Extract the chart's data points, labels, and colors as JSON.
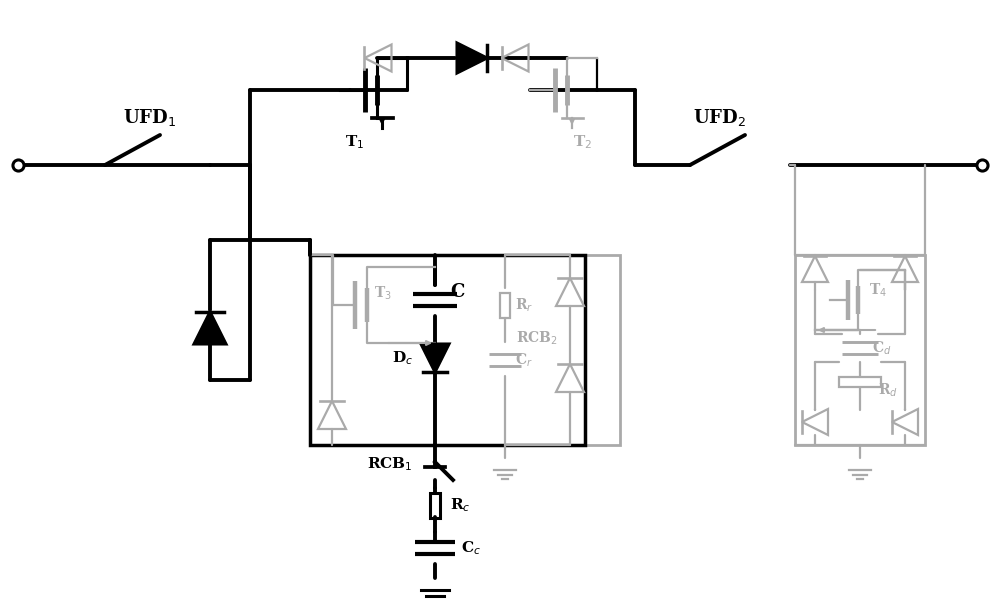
{
  "bg": "#ffffff",
  "black": "#000000",
  "gray": "#aaaaaa",
  "figsize": [
    10,
    6
  ],
  "dpi": 100,
  "xlim": [
    0,
    10
  ],
  "ylim": [
    0,
    6
  ],
  "labels": {
    "UFD1": "UFD$_1$",
    "UFD2": "UFD$_2$",
    "T1": "T$_1$",
    "T2": "T$_2$",
    "T3": "T$_3$",
    "T4": "T$_4$",
    "C": "C",
    "Dc": "D$_c$",
    "RCB1": "RCB$_1$",
    "RCB2": "RCB$_2$",
    "Rc": "R$_c$",
    "Cc": "C$_c$",
    "Rr": "R$_r$",
    "Cr": "C$_r$",
    "Cd": "C$_d$",
    "Rd": "R$_d$"
  }
}
